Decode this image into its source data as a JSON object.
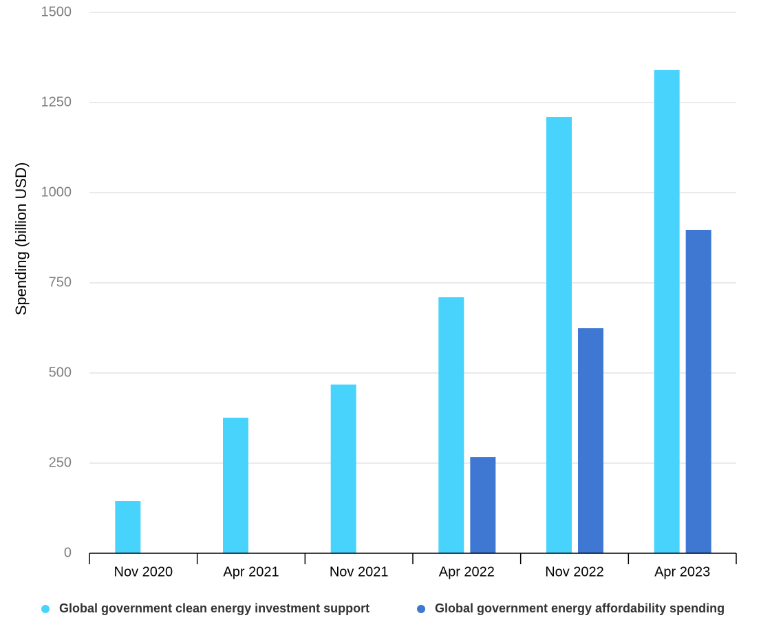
{
  "chart_data": {
    "type": "bar",
    "y_label": "Spending (billion USD)",
    "categories": [
      "Nov 2020",
      "Apr 2021",
      "Nov 2021",
      "Apr 2022",
      "Nov 2022",
      "Apr 2023"
    ],
    "series": [
      {
        "name": "Global government clean energy investment support",
        "color": "#48d3fd",
        "values": [
          145,
          376,
          468,
          710,
          1210,
          1340
        ]
      },
      {
        "name": "Global government energy affordability spending",
        "color": "#3e78d3",
        "values": [
          null,
          null,
          null,
          267,
          624,
          897
        ]
      }
    ],
    "ylim": [
      0,
      1500
    ],
    "yticks": [
      0,
      250,
      500,
      750,
      1000,
      1250,
      1500
    ],
    "grid": true
  }
}
